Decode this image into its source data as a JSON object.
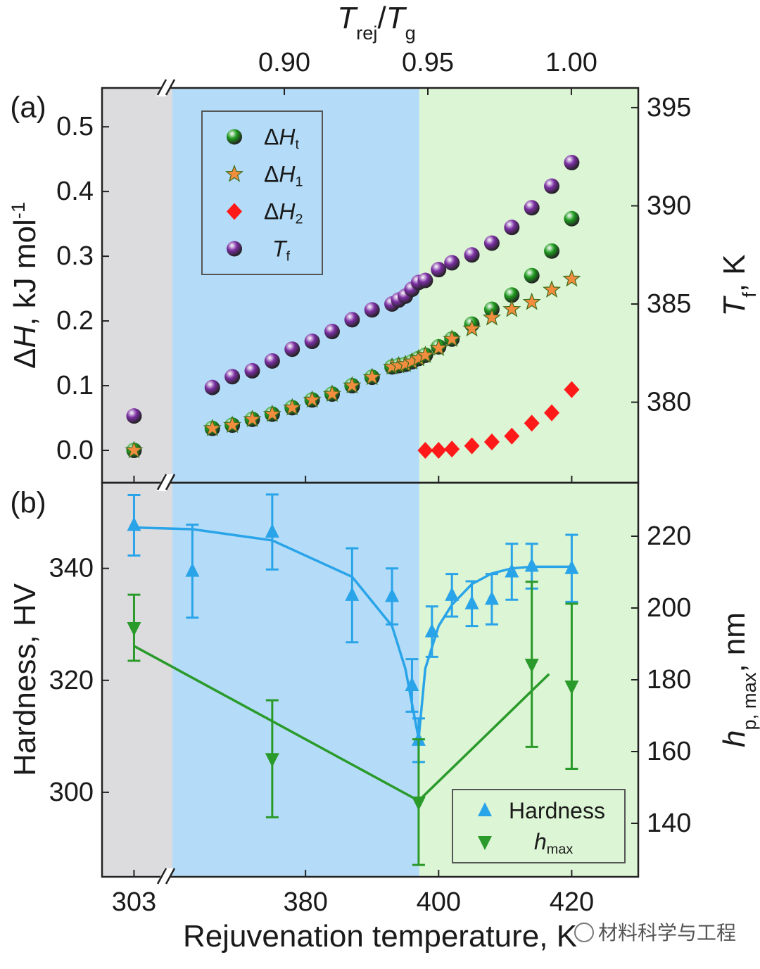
{
  "x_axis": {
    "label": "Rejuvenation temperature, K",
    "break": true,
    "xlim": [
      [
        298,
        309
      ],
      [
        360,
        430
      ]
    ],
    "xticks": [
      303,
      380,
      400,
      420
    ],
    "regions": [
      {
        "color": "#dcdcdf",
        "from": 298,
        "to": 309
      },
      {
        "color": "#b4dcf8",
        "from": 360,
        "to": 397.1
      },
      {
        "color": "#dcf5d5",
        "from": 397.1,
        "to": 430
      }
    ]
  },
  "chart_data": [
    {
      "type": "scatter",
      "panel_label": "(a)",
      "x2label": [
        {
          "text": "T",
          "style": "italic"
        },
        {
          "text": "rej",
          "style": "sub"
        },
        {
          "text": "/"
        },
        {
          "text": "T",
          "style": "italic"
        },
        {
          "text": "g",
          "style": "sub"
        }
      ],
      "x2lim": [
        0.8365,
        1.0233
      ],
      "x2ticks": [
        {
          "value": 0.9,
          "label": "0.90"
        },
        {
          "value": 0.95,
          "label": "0.95"
        },
        {
          "value": 1,
          "label": "1.00"
        }
      ],
      "ylabel": [
        {
          "text": "Δ"
        },
        {
          "text": "H",
          "style": "italic"
        },
        {
          "text": ", kJ mol"
        },
        {
          "text": "-1",
          "style": "sup"
        }
      ],
      "ylim": [
        -0.05,
        0.56
      ],
      "yticks": [
        {
          "value": 0,
          "label": "0.0"
        },
        0.1,
        0.2,
        0.3,
        0.4,
        0.5
      ],
      "y2label": [
        {
          "text": "T",
          "style": "italic"
        },
        {
          "text": "f",
          "style": "sub"
        },
        {
          "text": ", K"
        }
      ],
      "y2lim": [
        375.9,
        396.0
      ],
      "y2ticks": [
        380,
        385,
        390,
        395
      ],
      "legend": "upper-left",
      "x": [
        303,
        366,
        369,
        372,
        375,
        378,
        381,
        384,
        387,
        390,
        393,
        394,
        395,
        396,
        397,
        398,
        400,
        402,
        405,
        408,
        411,
        414,
        417,
        420
      ],
      "series": [
        {
          "name": [
            {
              "text": "Δ"
            },
            {
              "text": "H",
              "style": "italic"
            },
            {
              "text": "t",
              "style": "sub"
            }
          ],
          "color": "#1e9a1e",
          "marker": "sphere",
          "values": [
            0.0,
            0.034,
            0.039,
            0.048,
            0.056,
            0.066,
            0.078,
            0.087,
            0.1,
            0.113,
            0.129,
            0.131,
            0.133,
            0.137,
            0.142,
            0.147,
            0.16,
            0.172,
            0.195,
            0.218,
            0.24,
            0.27,
            0.308,
            0.358
          ]
        },
        {
          "name": [
            {
              "text": "Δ"
            },
            {
              "text": "H",
              "style": "italic"
            },
            {
              "text": "1",
              "style": "sub"
            }
          ],
          "color": "#f28c3e",
          "marker": "star",
          "values": [
            0.0,
            0.034,
            0.039,
            0.048,
            0.056,
            0.066,
            0.078,
            0.087,
            0.1,
            0.113,
            0.129,
            0.131,
            0.133,
            0.137,
            0.142,
            0.147,
            0.158,
            0.172,
            0.188,
            0.205,
            0.218,
            0.229,
            0.248,
            0.265
          ]
        },
        {
          "name": [
            {
              "text": "Δ"
            },
            {
              "text": "H",
              "style": "italic"
            },
            {
              "text": "2",
              "style": "sub"
            }
          ],
          "color": "#ff1a1a",
          "marker": "diamond",
          "values": [
            null,
            null,
            null,
            null,
            null,
            null,
            null,
            null,
            null,
            null,
            null,
            null,
            null,
            null,
            null,
            0.0,
            0.0,
            0.002,
            0.007,
            0.013,
            0.022,
            0.042,
            0.058,
            0.094
          ]
        },
        {
          "name": [
            {
              "text": "T",
              "style": "italic"
            },
            {
              "text": "f",
              "style": "sub"
            }
          ],
          "color": "#7b2fa3",
          "marker": "sphere",
          "axis": "y2",
          "values": [
            379.3,
            380.75,
            381.3,
            381.6,
            382.1,
            382.7,
            383.1,
            383.6,
            384.2,
            384.7,
            385.0,
            385.2,
            385.4,
            385.75,
            386.1,
            386.2,
            386.75,
            387.1,
            387.5,
            388.1,
            388.9,
            389.9,
            391.0,
            392.2
          ]
        }
      ]
    },
    {
      "type": "errorbar",
      "panel_label": "(b)",
      "ylabel": "Hardness, HV",
      "ylim": [
        284.9,
        355.3
      ],
      "yticks": [
        300,
        320,
        340
      ],
      "y2label": [
        {
          "text": "h",
          "style": "italic"
        },
        {
          "text": "p, max",
          "style": "sub"
        },
        {
          "text": ", nm"
        }
      ],
      "y2lim": [
        125.1,
        234.9
      ],
      "y2ticks": [
        140,
        160,
        180,
        200,
        220
      ],
      "legend": "lower-right",
      "series": [
        {
          "name": [
            {
              "text": "Hardness"
            }
          ],
          "color": "#2aa4e8",
          "marker": "triangle-up",
          "x": [
            303,
            363,
            375,
            387,
            393,
            396,
            397,
            399,
            402,
            405,
            408,
            411,
            414,
            420
          ],
          "values": [
            347.7,
            339.5,
            346.5,
            335.2,
            335.0,
            319.1,
            309.3,
            328.7,
            335.2,
            333.7,
            334.5,
            339.4,
            340.4,
            340.0
          ],
          "errors": [
            5.4,
            8.3,
            6.7,
            8.4,
            5.0,
            4.7,
            3.9,
            4.5,
            3.8,
            4.0,
            4.5,
            5.0,
            4.0,
            6.0
          ]
        },
        {
          "name": [
            {
              "text": "h",
              "style": "italic"
            },
            {
              "text": "max",
              "style": "sub"
            }
          ],
          "color": "#2a9a2a",
          "marker": "triangle-down",
          "axis": "y2",
          "x": [
            303,
            375,
            397,
            414,
            420
          ],
          "values": [
            194.5,
            158.0,
            145.9,
            184.3,
            178.2
          ],
          "errors": [
            9.2,
            16.3,
            17.5,
            23.0,
            23.0
          ]
        }
      ],
      "fits": [
        {
          "color": "#2aa4e8",
          "x": [
            303,
            363,
            375,
            387,
            393,
            395,
            396,
            397,
            398,
            400,
            402,
            405,
            408,
            411,
            414,
            420
          ],
          "values": [
            347.3,
            347.0,
            345.0,
            338.5,
            329.7,
            322.1,
            315.8,
            309.6,
            322.1,
            329.7,
            333.5,
            337.2,
            339.1,
            340.0,
            340.3,
            340.3
          ]
        },
        {
          "color": "#2a9a2a",
          "axis": "y2",
          "x": [
            303,
            397,
            416.6
          ],
          "values": [
            189.4,
            146.3,
            181.6
          ]
        }
      ]
    }
  ],
  "watermark": "材料科学与工程"
}
